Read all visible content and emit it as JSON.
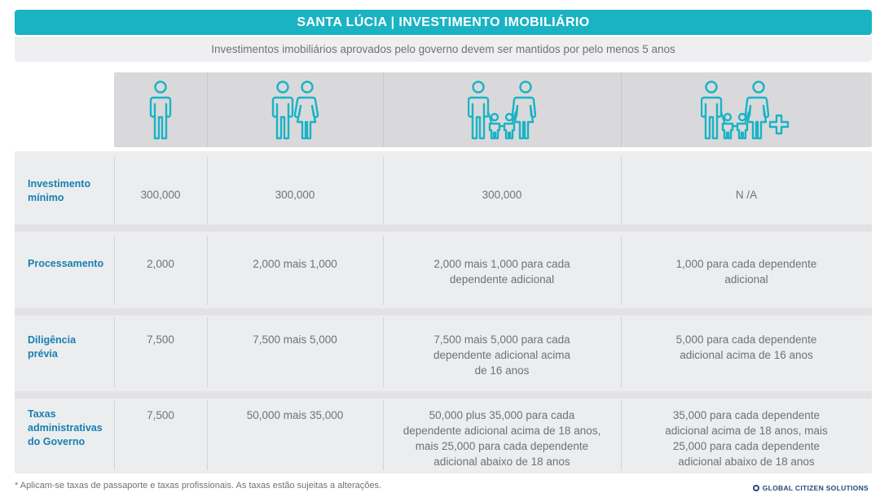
{
  "header": {
    "title": "SANTA LÚCIA | INVESTIMENTO IMOBILIÁRIO",
    "subtitle": "Investimentos imobiliários aprovados pelo governo devem ser mantidos por pelo menos 5 anos"
  },
  "columns": [
    {
      "icon": "single-person-icon"
    },
    {
      "icon": "couple-icon"
    },
    {
      "icon": "family-icon"
    },
    {
      "icon": "family-plus-icon"
    }
  ],
  "rows": [
    {
      "label": "Investimento\nmínimo",
      "values": [
        "300,000",
        "300,000",
        "300,000",
        "N /A"
      ]
    },
    {
      "label": "Processamento",
      "values": [
        "2,000",
        "2,000 mais 1,000",
        "2,000 mais 1,000 para cada\ndependente adicional",
        "1,000 para cada dependente\nadicional"
      ]
    },
    {
      "label": "Diligência\nprévia",
      "values": [
        "7,500",
        "7,500 mais 5,000",
        "7,500 mais 5,000 para cada\ndependente adicional acima\nde 16 anos",
        "5,000 para cada dependente\nadicional acima de 16 anos"
      ]
    },
    {
      "label": "Taxas\n administrativas\ndo Governo",
      "values": [
        "7,500",
        "50,000 mais 35,000",
        "50,000 plus 35,000 para cada\ndependente adicional acima de 18 anos,\nmais 25,000 para cada dependente\nadicional abaixo de 18 anos",
        "35,000 para cada dependente\nadicional acima de 18 anos, mais\n25,000 para cada dependente\nadicional abaixo de 18 anos"
      ]
    }
  ],
  "footer": {
    "note": "* Aplicam-se taxas de passaporte e taxas profissionais. As taxas estão sujeitas a alterações.",
    "brand": "GLOBAL CITIZEN SOLUTIONS"
  },
  "colors": {
    "accent": "#19b3c4",
    "label": "#1680b2",
    "brand": "#244a7a"
  }
}
